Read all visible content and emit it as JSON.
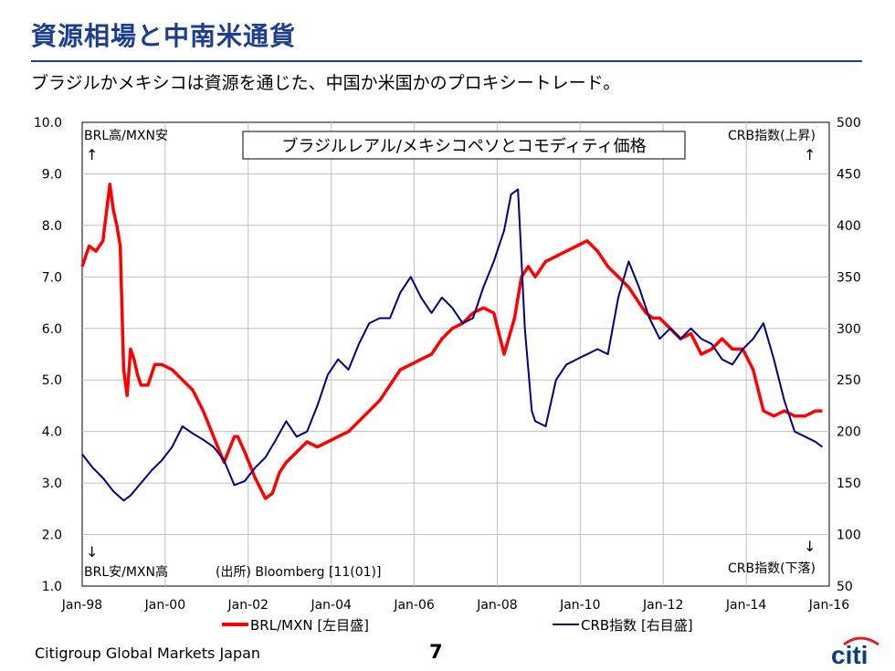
{
  "slide": {
    "title": "資源相場と中南米通貨",
    "subtitle": "ブラジルかメキシコは資源を通じた、中国か米国かのプロキシートレード。",
    "footer_company": "Citigroup Global Markets Japan",
    "page_number": "7",
    "logo_text": "citi",
    "colors": {
      "title": "#1d3e8e",
      "brl_mxn": "#ff0000",
      "crb": "#000080",
      "logo": "#0a3f7e",
      "logo_arc": "#e31b23"
    }
  },
  "chart_data": {
    "type": "line",
    "title": "ブラジルレアル/メキシコペソとコモディティ価格",
    "x_tick_labels": [
      "Jan-98",
      "Jan-00",
      "Jan-02",
      "Jan-04",
      "Jan-06",
      "Jan-08",
      "Jan-10",
      "Jan-12",
      "Jan-14",
      "Jan-16"
    ],
    "x_range": [
      "1998-01",
      "2016-01"
    ],
    "y_left": {
      "range": [
        1.0,
        10.0
      ],
      "ticks": [
        "1.0",
        "2.0",
        "3.0",
        "4.0",
        "5.0",
        "6.0",
        "7.0",
        "8.0",
        "9.0",
        "10.0"
      ]
    },
    "y_right": {
      "range": [
        50,
        500
      ],
      "ticks": [
        "50",
        "100",
        "150",
        "200",
        "250",
        "300",
        "350",
        "400",
        "450",
        "500"
      ]
    },
    "grid": true,
    "legend_position": "bottom",
    "annotations": {
      "top_left": "BRL高/MXN安",
      "top_left_arrow": "↑",
      "bottom_left_arrow": "↓",
      "bottom_left": "BRL安/MXN高",
      "source": "(出所) Bloomberg [11(01)]",
      "top_right": "CRB指数(上昇)",
      "top_right_arrow": "↑",
      "bottom_right_arrow": "↓",
      "bottom_right": "CRB指数(下落)"
    },
    "series": [
      {
        "name": "BRL/MXN [左目盛]",
        "axis": "left",
        "color": "#ff0000",
        "x": [
          "1998-01",
          "1998-03",
          "1998-05",
          "1998-07",
          "1998-09",
          "1998-10",
          "1998-11",
          "1998-12",
          "1999-01",
          "1999-02",
          "1999-03",
          "1999-04",
          "1999-05",
          "1999-06",
          "1999-08",
          "1999-10",
          "1999-12",
          "2000-03",
          "2000-06",
          "2000-09",
          "2000-12",
          "2001-03",
          "2001-06",
          "2001-09",
          "2001-10",
          "2001-12",
          "2002-03",
          "2002-06",
          "2002-08",
          "2002-10",
          "2002-12",
          "2003-03",
          "2003-06",
          "2003-09",
          "2003-12",
          "2004-03",
          "2004-06",
          "2004-09",
          "2004-12",
          "2005-03",
          "2005-06",
          "2005-09",
          "2005-12",
          "2006-03",
          "2006-06",
          "2006-09",
          "2006-12",
          "2007-03",
          "2007-06",
          "2007-09",
          "2007-12",
          "2008-03",
          "2008-06",
          "2008-08",
          "2008-10",
          "2008-12",
          "2009-03",
          "2009-06",
          "2009-09",
          "2009-12",
          "2010-03",
          "2010-06",
          "2010-09",
          "2010-12",
          "2011-03",
          "2011-06",
          "2011-08",
          "2011-10",
          "2011-12",
          "2012-03",
          "2012-06",
          "2012-09",
          "2012-12",
          "2013-03",
          "2013-06",
          "2013-09",
          "2013-12",
          "2014-03",
          "2014-06",
          "2014-09",
          "2014-12",
          "2015-03",
          "2015-06",
          "2015-09",
          "2015-11"
        ],
        "values": [
          7.2,
          7.6,
          7.5,
          7.7,
          8.8,
          8.3,
          8.0,
          7.6,
          5.2,
          4.7,
          5.6,
          5.4,
          5.1,
          4.9,
          4.9,
          5.3,
          5.3,
          5.2,
          5.0,
          4.8,
          4.4,
          3.9,
          3.4,
          3.9,
          3.9,
          3.6,
          3.1,
          2.7,
          2.8,
          3.2,
          3.4,
          3.6,
          3.8,
          3.7,
          3.8,
          3.9,
          4.0,
          4.2,
          4.4,
          4.6,
          4.9,
          5.2,
          5.3,
          5.4,
          5.5,
          5.8,
          6.0,
          6.1,
          6.3,
          6.4,
          6.3,
          5.5,
          6.2,
          7.0,
          7.2,
          7.0,
          7.3,
          7.4,
          7.5,
          7.6,
          7.7,
          7.5,
          7.2,
          7.0,
          6.8,
          6.5,
          6.3,
          6.2,
          6.2,
          6.0,
          5.8,
          5.9,
          5.5,
          5.6,
          5.8,
          5.6,
          5.6,
          5.2,
          4.4,
          4.3,
          4.4,
          4.3,
          4.3,
          4.4,
          4.4
        ]
      },
      {
        "name": "CRB指数 [右目盛]",
        "axis": "right",
        "color": "#000080",
        "x": [
          "1998-01",
          "1998-04",
          "1998-07",
          "1998-10",
          "1999-01",
          "1999-03",
          "1999-06",
          "1999-09",
          "1999-12",
          "2000-03",
          "2000-06",
          "2000-09",
          "2000-12",
          "2001-03",
          "2001-06",
          "2001-09",
          "2001-12",
          "2002-03",
          "2002-06",
          "2002-09",
          "2002-12",
          "2003-03",
          "2003-06",
          "2003-09",
          "2003-12",
          "2004-03",
          "2004-06",
          "2004-09",
          "2004-12",
          "2005-03",
          "2005-06",
          "2005-09",
          "2005-12",
          "2006-03",
          "2006-06",
          "2006-09",
          "2006-12",
          "2007-03",
          "2007-06",
          "2007-09",
          "2007-12",
          "2008-03",
          "2008-05",
          "2008-07",
          "2008-09",
          "2008-11",
          "2008-12",
          "2009-03",
          "2009-06",
          "2009-09",
          "2009-12",
          "2010-03",
          "2010-06",
          "2010-09",
          "2010-12",
          "2011-03",
          "2011-06",
          "2011-09",
          "2011-12",
          "2012-03",
          "2012-06",
          "2012-09",
          "2012-12",
          "2013-03",
          "2013-06",
          "2013-09",
          "2013-12",
          "2014-03",
          "2014-06",
          "2014-09",
          "2014-12",
          "2015-03",
          "2015-06",
          "2015-09",
          "2015-11"
        ],
        "values": [
          178,
          165,
          155,
          142,
          133,
          138,
          150,
          162,
          172,
          185,
          205,
          198,
          192,
          185,
          172,
          148,
          152,
          165,
          175,
          192,
          210,
          195,
          200,
          225,
          255,
          270,
          260,
          285,
          305,
          310,
          310,
          335,
          350,
          330,
          315,
          330,
          320,
          305,
          310,
          340,
          365,
          395,
          430,
          435,
          300,
          220,
          210,
          205,
          250,
          265,
          270,
          275,
          280,
          275,
          330,
          365,
          340,
          310,
          290,
          300,
          290,
          300,
          290,
          285,
          270,
          265,
          280,
          290,
          305,
          270,
          230,
          200,
          195,
          190,
          185
        ]
      }
    ]
  }
}
